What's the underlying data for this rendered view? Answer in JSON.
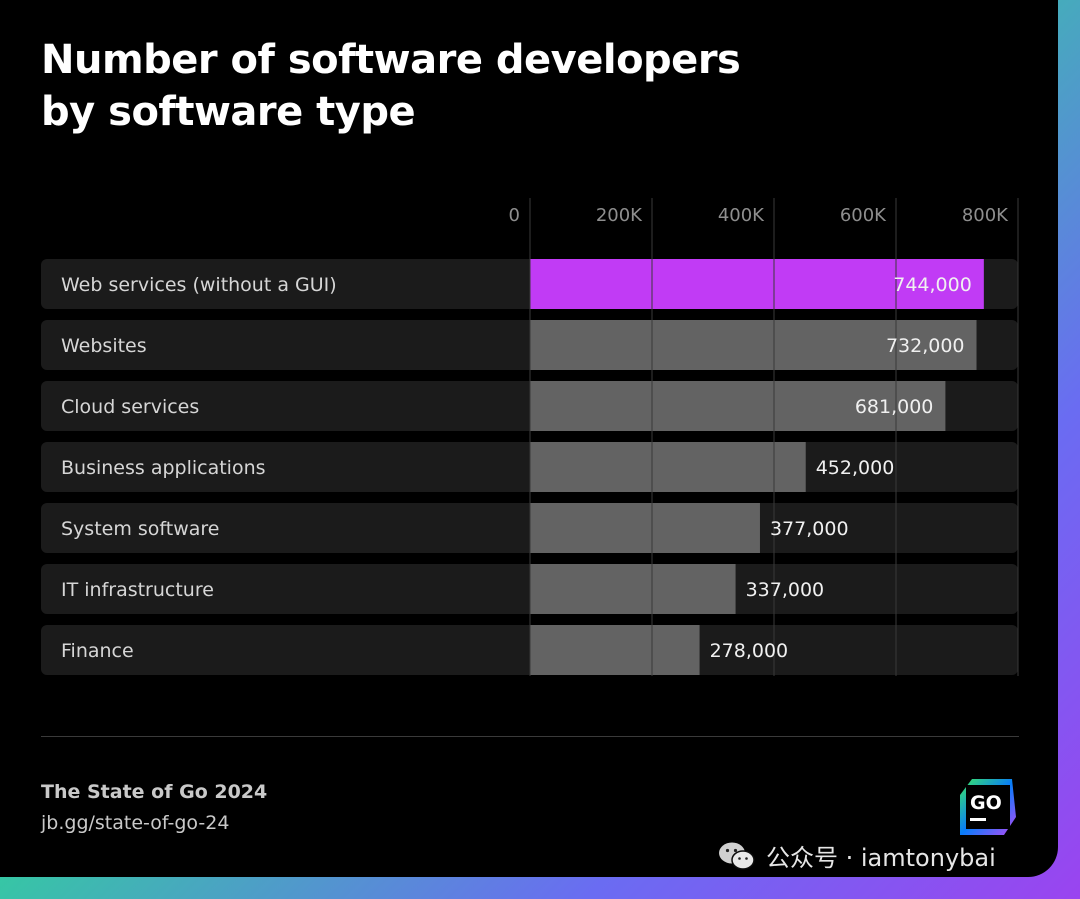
{
  "chart_data": {
    "type": "bar",
    "orientation": "horizontal",
    "title": "Number of software developers by software type",
    "categories": [
      "Web services (without a GUI)",
      "Websites",
      "Cloud services",
      "Business applications",
      "System software",
      "IT infrastructure",
      "Finance"
    ],
    "values": [
      744000,
      732000,
      681000,
      452000,
      377000,
      337000,
      278000
    ],
    "value_labels": [
      "744,000",
      "732,000",
      "681,000",
      "452,000",
      "377,000",
      "337,000",
      "278,000"
    ],
    "x_ticks": [
      0,
      200000,
      400000,
      600000,
      800000
    ],
    "x_tick_labels": [
      "0",
      "200K",
      "400K",
      "600K",
      "800K"
    ],
    "xlim": [
      0,
      800000
    ],
    "grid": true,
    "highlight_index": 0,
    "colors": {
      "highlight": "#c13bf5",
      "bar": "#636363",
      "track": "#1b1b1b",
      "grid": "#3a3a3a"
    }
  },
  "footer": {
    "source": "The State of Go 2024",
    "url": "jb.gg/state-of-go-24",
    "logo_text": "GO",
    "logo_icon": "jetbrains-goland-logo"
  },
  "watermark": {
    "icon": "wechat-icon",
    "text": "公众号 · iamtonybai"
  }
}
